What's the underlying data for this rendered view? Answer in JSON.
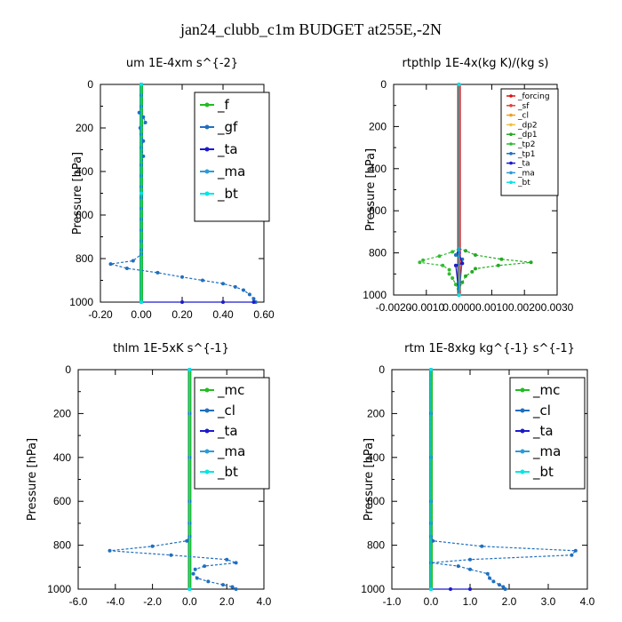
{
  "figure_title": "jan24_clubb_c1m  BUDGET at255E,-2N",
  "chart_data": [
    {
      "type": "line",
      "title": "um   1E-4xm s^{-2}",
      "ylabel": "Pressure [hPa]",
      "xlim": [
        -0.2,
        0.6
      ],
      "ylim": [
        0,
        1000
      ],
      "y_inverted": true,
      "xticks": [
        "-0.20",
        "0.00",
        "0.20",
        "0.40",
        "0.60"
      ],
      "xtick_values": [
        -0.2,
        0.0,
        0.2,
        0.4,
        0.6
      ],
      "yticks": [
        "0",
        "200",
        "400",
        "600",
        "800",
        "1000"
      ],
      "legend": [
        "_f",
        "_gf",
        "_ta",
        "_ma",
        "_bt"
      ],
      "series": [
        {
          "name": "_f",
          "color": "#22bb22",
          "points": [
            [
              0.0,
              0
            ],
            [
              0.0,
              100
            ],
            [
              0.0,
              200
            ],
            [
              0.0,
              300
            ],
            [
              0.0,
              400
            ],
            [
              0.0,
              500
            ],
            [
              0.0,
              600
            ],
            [
              0.0,
              700
            ],
            [
              0.0,
              800
            ],
            [
              0.0,
              900
            ],
            [
              0.0,
              1000
            ]
          ]
        },
        {
          "name": "_gf",
          "color": "#1f6fbf",
          "points": [
            [
              0.0,
              0
            ],
            [
              0.0,
              50
            ],
            [
              0.0,
              100
            ],
            [
              -0.01,
              130
            ],
            [
              0.01,
              150
            ],
            [
              0.02,
              175
            ],
            [
              -0.005,
              200
            ],
            [
              0.0,
              230
            ],
            [
              0.01,
              260
            ],
            [
              0.0,
              290
            ],
            [
              0.01,
              330
            ],
            [
              0.0,
              370
            ],
            [
              0.0,
              420
            ],
            [
              0.0,
              470
            ],
            [
              0.0,
              520
            ],
            [
              0.0,
              570
            ],
            [
              0.0,
              620
            ],
            [
              0.0,
              670
            ],
            [
              0.0,
              720
            ],
            [
              0.0,
              760
            ],
            [
              0.0,
              780
            ],
            [
              -0.04,
              810
            ],
            [
              -0.15,
              825
            ],
            [
              -0.07,
              845
            ],
            [
              0.08,
              865
            ],
            [
              0.2,
              885
            ],
            [
              0.3,
              900
            ],
            [
              0.4,
              915
            ],
            [
              0.46,
              930
            ],
            [
              0.5,
              945
            ],
            [
              0.53,
              965
            ],
            [
              0.55,
              985
            ],
            [
              0.56,
              1000
            ]
          ]
        },
        {
          "name": "_ta",
          "color": "#1a1acc",
          "points": [
            [
              0.0,
              0
            ],
            [
              0.0,
              500
            ],
            [
              0.0,
              1000
            ],
            [
              0.2,
              1000
            ],
            [
              0.4,
              1000
            ],
            [
              0.55,
              1000
            ]
          ]
        },
        {
          "name": "_ma",
          "color": "#2e9bd6",
          "points": [
            [
              0.0,
              0
            ],
            [
              0.0,
              500
            ],
            [
              0.0,
              1000
            ]
          ]
        },
        {
          "name": "_bt",
          "color": "#00e5e5",
          "points": [
            [
              0.0,
              0
            ],
            [
              0.0,
              500
            ],
            [
              0.0,
              1000
            ]
          ]
        }
      ]
    },
    {
      "type": "line",
      "title": "rtpthlp   1E-4x(kg K)/(kg s)",
      "ylabel": "Pressure [hPa]",
      "xlim": [
        -0.002,
        0.003
      ],
      "ylim": [
        0,
        1000
      ],
      "y_inverted": true,
      "xticks": [
        "-0.0020",
        "-0.0010",
        "0.0000",
        "0.0010",
        "0.0020",
        "0.0030"
      ],
      "xtick_values": [
        -0.002,
        -0.001,
        0.0,
        0.001,
        0.002,
        0.003
      ],
      "yticks": [
        "0",
        "200",
        "400",
        "600",
        "800",
        "1000"
      ],
      "legend": [
        "_forcing",
        "_sf",
        "_cl",
        "_dp2",
        "_dp1",
        "_tp2",
        "_tp1",
        "_ta",
        "_ma",
        "_bt"
      ],
      "series": [
        {
          "name": "_forcing",
          "color": "#e01010",
          "points": [
            [
              0.0,
              0
            ],
            [
              0.0,
              500
            ],
            [
              0.0,
              1000
            ]
          ]
        },
        {
          "name": "_sf",
          "color": "#e04040",
          "points": [
            [
              0.0,
              0
            ],
            [
              0.0,
              1000
            ]
          ]
        },
        {
          "name": "_cl",
          "color": "#f0a020",
          "points": [
            [
              0.0,
              0
            ],
            [
              0.0,
              1000
            ]
          ]
        },
        {
          "name": "_dp2",
          "color": "#f0c040",
          "points": [
            [
              0.0,
              0
            ],
            [
              0.0,
              1000
            ]
          ]
        },
        {
          "name": "_dp1",
          "color": "#22aa22",
          "points": [
            [
              0.0,
              0
            ],
            [
              0.0,
              780
            ],
            [
              0.0002,
              790
            ],
            [
              0.0005,
              810
            ],
            [
              0.0013,
              830
            ],
            [
              0.0022,
              845
            ],
            [
              0.0012,
              860
            ],
            [
              0.0005,
              875
            ],
            [
              0.0004,
              890
            ],
            [
              0.0002,
              910
            ],
            [
              0.0001,
              940
            ],
            [
              0.0,
              970
            ],
            [
              0.0,
              1000
            ]
          ]
        },
        {
          "name": "_tp2",
          "color": "#33bb33",
          "points": [
            [
              0.0,
              0
            ],
            [
              0.0,
              780
            ],
            [
              -0.0002,
              795
            ],
            [
              -0.0006,
              815
            ],
            [
              -0.0011,
              835
            ],
            [
              -0.0012,
              845
            ],
            [
              -0.0005,
              860
            ],
            [
              -0.0003,
              880
            ],
            [
              -0.0003,
              900
            ],
            [
              -0.0002,
              920
            ],
            [
              -0.0001,
              950
            ],
            [
              0.0,
              1000
            ]
          ]
        },
        {
          "name": "_tp1",
          "color": "#1f6fbf",
          "points": [
            [
              0.0,
              0
            ],
            [
              0.0,
              780
            ],
            [
              -0.0001,
              810
            ],
            [
              0.0001,
              830
            ],
            [
              0.0,
              1000
            ]
          ]
        },
        {
          "name": "_ta",
          "color": "#1a1acc",
          "points": [
            [
              0.0,
              0
            ],
            [
              0.0,
              800
            ],
            [
              0.0001,
              850
            ],
            [
              -0.0001,
              860
            ],
            [
              0.0,
              1000
            ]
          ]
        },
        {
          "name": "_ma",
          "color": "#2e9bd6",
          "points": [
            [
              0.0,
              0
            ],
            [
              0.0,
              1000
            ]
          ]
        },
        {
          "name": "_bt",
          "color": "#00e5e5",
          "points": [
            [
              0.0,
              0
            ],
            [
              0.0,
              1000
            ]
          ]
        }
      ]
    },
    {
      "type": "line",
      "title": "thlm   1E-5xK  s^{-1}",
      "ylabel": "Pressure [hPa]",
      "xlim": [
        -6.0,
        4.0
      ],
      "ylim": [
        0,
        1000
      ],
      "y_inverted": true,
      "xticks": [
        "-6.0",
        "-4.0",
        "-2.0",
        "0.0",
        "2.0",
        "4.0"
      ],
      "xtick_values": [
        -6,
        -4,
        -2,
        0,
        2,
        4
      ],
      "yticks": [
        "0",
        "200",
        "400",
        "600",
        "800",
        "1000"
      ],
      "legend": [
        "_mc",
        "_cl",
        "_ta",
        "_ma",
        "_bt"
      ],
      "series": [
        {
          "name": "_mc",
          "color": "#22bb22",
          "points": [
            [
              0.0,
              0
            ],
            [
              0.0,
              200
            ],
            [
              0.0,
              400
            ],
            [
              0.0,
              600
            ],
            [
              0.0,
              800
            ],
            [
              0.0,
              1000
            ]
          ]
        },
        {
          "name": "_cl",
          "color": "#1f6fbf",
          "points": [
            [
              0.0,
              0
            ],
            [
              0.0,
              200
            ],
            [
              0.0,
              400
            ],
            [
              0.0,
              600
            ],
            [
              0.0,
              700
            ],
            [
              0.0,
              760
            ],
            [
              -0.15,
              780
            ],
            [
              -2.0,
              805
            ],
            [
              -4.3,
              825
            ],
            [
              -1.0,
              845
            ],
            [
              2.0,
              865
            ],
            [
              2.5,
              880
            ],
            [
              0.8,
              895
            ],
            [
              0.3,
              910
            ],
            [
              0.2,
              930
            ],
            [
              0.4,
              950
            ],
            [
              1.0,
              965
            ],
            [
              1.8,
              980
            ],
            [
              2.3,
              990
            ],
            [
              2.5,
              1000
            ]
          ]
        },
        {
          "name": "_ta",
          "color": "#1a1acc",
          "points": [
            [
              0.0,
              0
            ],
            [
              0.0,
              1000
            ]
          ]
        },
        {
          "name": "_ma",
          "color": "#2e9bd6",
          "points": [
            [
              0.0,
              0
            ],
            [
              0.0,
              1000
            ]
          ]
        },
        {
          "name": "_bt",
          "color": "#00e5e5",
          "points": [
            [
              0.0,
              0
            ],
            [
              0.0,
              1000
            ]
          ]
        }
      ]
    },
    {
      "type": "line",
      "title": "rtm   1E-8xkg kg^{-1} s^{-1}",
      "ylabel": "Pressure [hPa]",
      "xlim": [
        -1.0,
        4.0
      ],
      "ylim": [
        0,
        1000
      ],
      "y_inverted": true,
      "xticks": [
        "-1.0",
        "0.0",
        "1.0",
        "2.0",
        "3.0",
        "4.0"
      ],
      "xtick_values": [
        -1,
        0,
        1,
        2,
        3,
        4
      ],
      "yticks": [
        "0",
        "200",
        "400",
        "600",
        "800",
        "1000"
      ],
      "legend": [
        "_mc",
        "_cl",
        "_ta",
        "_ma",
        "_bt"
      ],
      "series": [
        {
          "name": "_mc",
          "color": "#22bb22",
          "points": [
            [
              0.0,
              0
            ],
            [
              0.0,
              200
            ],
            [
              0.0,
              400
            ],
            [
              0.0,
              600
            ],
            [
              0.0,
              800
            ],
            [
              0.0,
              1000
            ]
          ]
        },
        {
          "name": "_cl",
          "color": "#1f6fbf",
          "points": [
            [
              0.0,
              0
            ],
            [
              0.0,
              200
            ],
            [
              0.0,
              400
            ],
            [
              0.0,
              600
            ],
            [
              0.0,
              700
            ],
            [
              0.0,
              760
            ],
            [
              0.05,
              780
            ],
            [
              1.3,
              805
            ],
            [
              3.7,
              825
            ],
            [
              3.6,
              845
            ],
            [
              1.0,
              865
            ],
            [
              0.0,
              880
            ],
            [
              0.7,
              895
            ],
            [
              1.0,
              910
            ],
            [
              1.45,
              930
            ],
            [
              1.5,
              950
            ],
            [
              1.6,
              965
            ],
            [
              1.75,
              980
            ],
            [
              1.85,
              990
            ],
            [
              1.9,
              1000
            ]
          ]
        },
        {
          "name": "_ta",
          "color": "#1a1acc",
          "points": [
            [
              0.0,
              0
            ],
            [
              0.0,
              1000
            ],
            [
              0.5,
              1000
            ],
            [
              1.0,
              1000
            ]
          ]
        },
        {
          "name": "_ma",
          "color": "#2e9bd6",
          "points": [
            [
              0.0,
              0
            ],
            [
              0.0,
              1000
            ]
          ]
        },
        {
          "name": "_bt",
          "color": "#00e5e5",
          "points": [
            [
              0.0,
              0
            ],
            [
              0.0,
              1000
            ]
          ]
        }
      ]
    }
  ]
}
